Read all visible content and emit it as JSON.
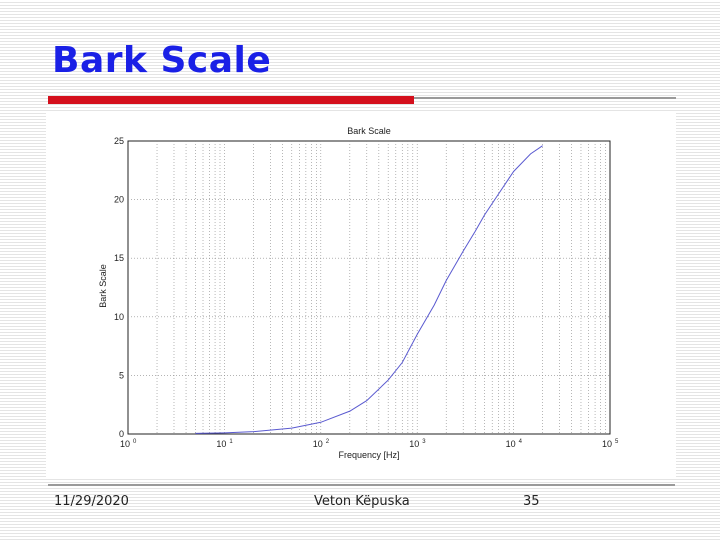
{
  "slide": {
    "title": "Bark Scale",
    "footer": {
      "date": "11/29/2020",
      "author": "Veton Këpuska",
      "page": "35"
    }
  },
  "colors": {
    "title": "#1a20e6",
    "accent_bar": "#d40f1c",
    "curve": "#5a5ad0"
  },
  "chart_data": {
    "type": "line",
    "title": "Bark Scale",
    "xlabel": "Frequency [Hz]",
    "ylabel": "Bark Scale",
    "x_scale": "log",
    "xlim": [
      1,
      100000
    ],
    "ylim": [
      0,
      25
    ],
    "x_ticks": [
      {
        "value": 1,
        "base": "10",
        "exp": "0"
      },
      {
        "value": 10,
        "base": "10",
        "exp": "1"
      },
      {
        "value": 100,
        "base": "10",
        "exp": "2"
      },
      {
        "value": 1000,
        "base": "10",
        "exp": "3"
      },
      {
        "value": 10000,
        "base": "10",
        "exp": "4"
      },
      {
        "value": 100000,
        "base": "10",
        "exp": "5"
      }
    ],
    "y_ticks": [
      "0",
      "5",
      "10",
      "15",
      "20",
      "25"
    ],
    "grid": true,
    "series": [
      {
        "x": [
          5,
          10,
          20,
          50,
          100,
          200,
          300,
          500,
          700,
          1000,
          1500,
          2000,
          3000,
          4000,
          5000,
          7000,
          10000,
          15000,
          20000
        ],
        "y": [
          0.05,
          0.1,
          0.2,
          0.5,
          1.0,
          1.95,
          2.85,
          4.6,
          6.1,
          8.5,
          11.0,
          13.1,
          15.6,
          17.3,
          18.7,
          20.5,
          22.4,
          23.9,
          24.6
        ]
      }
    ]
  }
}
